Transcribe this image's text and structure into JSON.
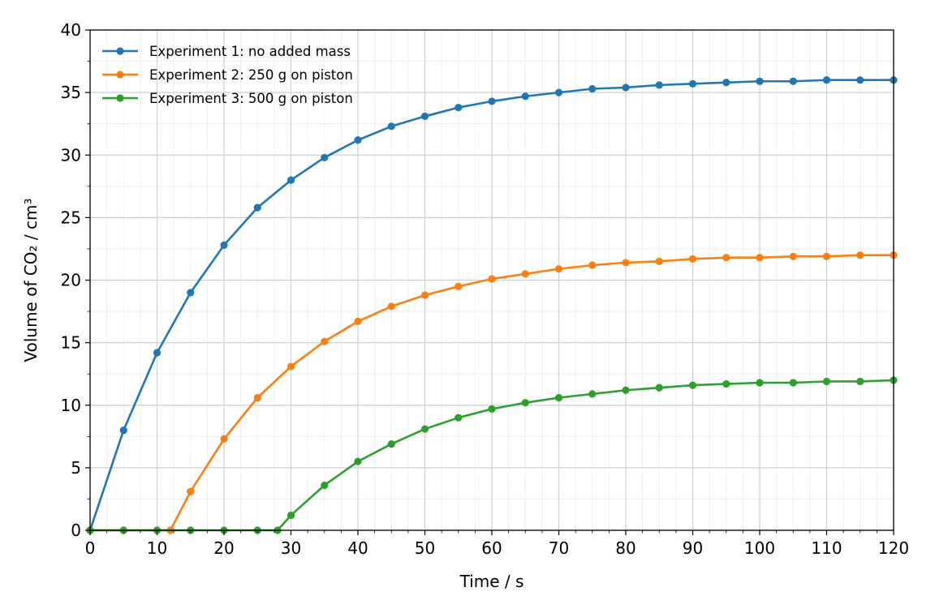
{
  "chart_data": {
    "type": "line",
    "xlabel": "Time / s",
    "ylabel": "Volume of CO₂ / cm³",
    "xlim": [
      0,
      120
    ],
    "ylim": [
      0,
      40
    ],
    "xticks": [
      0,
      10,
      20,
      30,
      40,
      50,
      60,
      70,
      80,
      90,
      100,
      110,
      120
    ],
    "yticks": [
      0,
      5,
      10,
      15,
      20,
      25,
      30,
      35,
      40
    ],
    "grid": true,
    "legend_position": "top-left",
    "series": [
      {
        "name": "Experiment 1: no added mass",
        "color": "#1f77b4",
        "x": [
          0,
          5,
          10,
          15,
          20,
          25,
          30,
          35,
          40,
          45,
          50,
          55,
          60,
          65,
          70,
          75,
          80,
          85,
          90,
          95,
          100,
          105,
          110,
          115,
          120
        ],
        "y": [
          0,
          8.0,
          14.2,
          19.0,
          22.8,
          25.8,
          28.0,
          29.8,
          31.2,
          32.3,
          33.1,
          33.8,
          34.3,
          34.7,
          35.0,
          35.3,
          35.4,
          35.6,
          35.7,
          35.8,
          35.9,
          35.9,
          36.0,
          36.0,
          36.0
        ]
      },
      {
        "name": "Experiment 2: 250 g on piston",
        "color": "#ff7f0e",
        "x": [
          0,
          5,
          10,
          12,
          15,
          20,
          25,
          30,
          35,
          40,
          45,
          50,
          55,
          60,
          65,
          70,
          75,
          80,
          85,
          90,
          95,
          100,
          105,
          110,
          115,
          120
        ],
        "y": [
          0,
          0,
          0,
          0,
          3.1,
          7.3,
          10.6,
          13.1,
          15.1,
          16.7,
          17.9,
          18.8,
          19.5,
          20.1,
          20.5,
          20.9,
          21.2,
          21.4,
          21.5,
          21.7,
          21.8,
          21.8,
          21.9,
          21.9,
          22.0,
          22.0
        ]
      },
      {
        "name": "Experiment 3: 500 g on piston",
        "color": "#2ca02c",
        "x": [
          0,
          5,
          10,
          15,
          20,
          25,
          28,
          30,
          35,
          40,
          45,
          50,
          55,
          60,
          65,
          70,
          75,
          80,
          85,
          90,
          95,
          100,
          105,
          110,
          115,
          120
        ],
        "y": [
          0,
          0,
          0,
          0,
          0,
          0,
          0,
          1.2,
          3.6,
          5.5,
          6.9,
          8.1,
          9.0,
          9.7,
          10.2,
          10.6,
          10.9,
          11.2,
          11.4,
          11.6,
          11.7,
          11.8,
          11.8,
          11.9,
          11.9,
          12.0
        ]
      }
    ]
  }
}
